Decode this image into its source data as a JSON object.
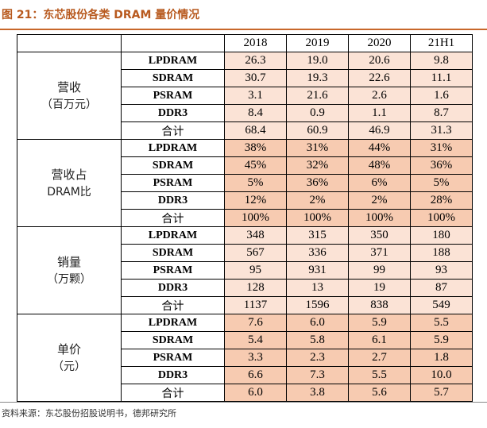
{
  "title": "图 21：东芯股份各类 DRAM 量价情况",
  "columns": [
    "2018",
    "2019",
    "2020",
    "21H1"
  ],
  "sections": [
    {
      "label_line1": "营收",
      "label_line2": "（百万元）",
      "rows": [
        {
          "label": "LPDRAM",
          "values": [
            "26.3",
            "19.0",
            "20.6",
            "9.8"
          ]
        },
        {
          "label": "SDRAM",
          "values": [
            "30.7",
            "19.3",
            "22.6",
            "11.1"
          ]
        },
        {
          "label": "PSRAM",
          "values": [
            "3.1",
            "21.6",
            "2.6",
            "1.6"
          ]
        },
        {
          "label": "DDR3",
          "values": [
            "8.4",
            "0.9",
            "1.1",
            "8.7"
          ]
        },
        {
          "label": "合计",
          "values": [
            "68.4",
            "60.9",
            "46.9",
            "31.3"
          ]
        }
      ]
    },
    {
      "label_line1": "营收占",
      "label_line2": "DRAM比",
      "rows": [
        {
          "label": "LPDRAM",
          "values": [
            "38%",
            "31%",
            "44%",
            "31%"
          ]
        },
        {
          "label": "SDRAM",
          "values": [
            "45%",
            "32%",
            "48%",
            "36%"
          ]
        },
        {
          "label": "PSRAM",
          "values": [
            "5%",
            "36%",
            "6%",
            "5%"
          ]
        },
        {
          "label": "DDR3",
          "values": [
            "12%",
            "2%",
            "2%",
            "28%"
          ]
        },
        {
          "label": "合计",
          "values": [
            "100%",
            "100%",
            "100%",
            "100%"
          ]
        }
      ]
    },
    {
      "label_line1": "销量",
      "label_line2": "（万颗）",
      "rows": [
        {
          "label": "LPDRAM",
          "values": [
            "348",
            "315",
            "350",
            "180"
          ]
        },
        {
          "label": "SDRAM",
          "values": [
            "567",
            "336",
            "371",
            "188"
          ]
        },
        {
          "label": "PSRAM",
          "values": [
            "95",
            "931",
            "99",
            "93"
          ]
        },
        {
          "label": "DDR3",
          "values": [
            "128",
            "13",
            "19",
            "87"
          ]
        },
        {
          "label": "合计",
          "values": [
            "1137",
            "1596",
            "838",
            "549"
          ]
        }
      ]
    },
    {
      "label_line1": "单价",
      "label_line2": "（元）",
      "rows": [
        {
          "label": "LPDRAM",
          "values": [
            "7.6",
            "6.0",
            "5.9",
            "5.5"
          ]
        },
        {
          "label": "SDRAM",
          "values": [
            "5.4",
            "5.8",
            "6.1",
            "5.9"
          ]
        },
        {
          "label": "PSRAM",
          "values": [
            "3.3",
            "2.3",
            "2.7",
            "1.8"
          ]
        },
        {
          "label": "DDR3",
          "values": [
            "6.6",
            "7.3",
            "5.5",
            "10.0"
          ]
        },
        {
          "label": "合计",
          "values": [
            "6.0",
            "3.8",
            "5.6",
            "5.7"
          ]
        }
      ]
    }
  ],
  "source": "资料来源：东芯股份招股说明书，德邦研究所",
  "colors": {
    "title": "#b85a1f",
    "light_fill": "#fbe3d6",
    "dark_fill": "#f7cbb1"
  }
}
